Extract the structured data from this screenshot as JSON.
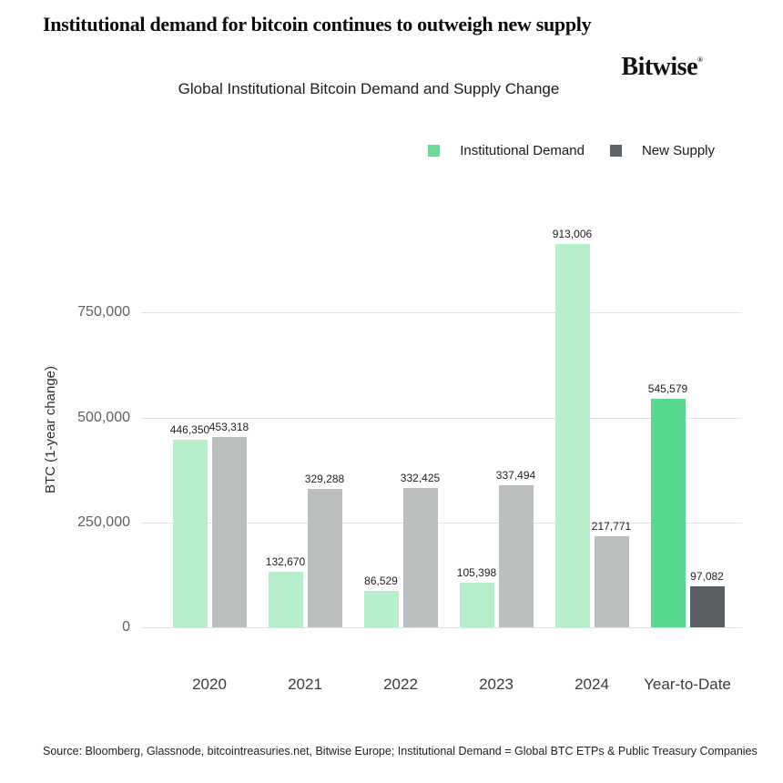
{
  "headline": "Institutional demand for bitcoin continues to outweigh new supply",
  "logo": {
    "text": "Bitwise",
    "mark": "®"
  },
  "chart": {
    "title": "Global Institutional Bitcoin Demand and Supply Change",
    "legend": [
      {
        "label": "Institutional Demand",
        "swatch_color": "#6fd79c"
      },
      {
        "label": "New Supply",
        "swatch_color": "#5d6366"
      }
    ],
    "y_axis": {
      "title": "BTC (1-year change)",
      "ticks": [
        {
          "value": 0,
          "label": "0"
        },
        {
          "value": 250000,
          "label": "250,000"
        },
        {
          "value": 500000,
          "label": "500,000"
        },
        {
          "value": 750000,
          "label": "750,000"
        }
      ]
    },
    "source": "Source: Bloomberg, Glassnode, bitcointreasuries.net, Bitwise Europe; Institutional Demand = Global BTC ETPs & Public Treasury Companies"
  },
  "chart_data": {
    "type": "bar",
    "grouped": true,
    "title": "Global Institutional Bitcoin Demand and Supply Change",
    "categories": [
      "2020",
      "2021",
      "2022",
      "2023",
      "2024",
      "Year-to-Date"
    ],
    "series": [
      {
        "name": "Institutional Demand",
        "values": [
          446350,
          132670,
          86529,
          105398,
          913006,
          545579
        ],
        "labels": [
          "446,350",
          "132,670",
          "86,529",
          "105,398",
          "913,006",
          "545,579"
        ],
        "colors": [
          "#b7eecb",
          "#b7eecb",
          "#b7eecb",
          "#b7eecb",
          "#b7eecb",
          "#57da90"
        ]
      },
      {
        "name": "New Supply",
        "values": [
          453318,
          329288,
          332425,
          337494,
          217771,
          97082
        ],
        "labels": [
          "453,318",
          "329,288",
          "332,425",
          "337,494",
          "217,771",
          "97,082"
        ],
        "colors": [
          "#bcbfc0",
          "#bcbfc0",
          "#bcbfc0",
          "#bcbfc0",
          "#bcbfc0",
          "#595f63"
        ]
      }
    ],
    "xlabel": "",
    "ylabel": "BTC (1-year change)",
    "ylim": [
      0,
      1000000
    ],
    "gridlines": true,
    "legend_position": "top-right",
    "colors": {
      "demand_past": "#b7eecb",
      "demand_current": "#57da90",
      "supply_past": "#bcbfc0",
      "supply_current": "#595f63",
      "gridline": "#e2e2e2"
    }
  }
}
